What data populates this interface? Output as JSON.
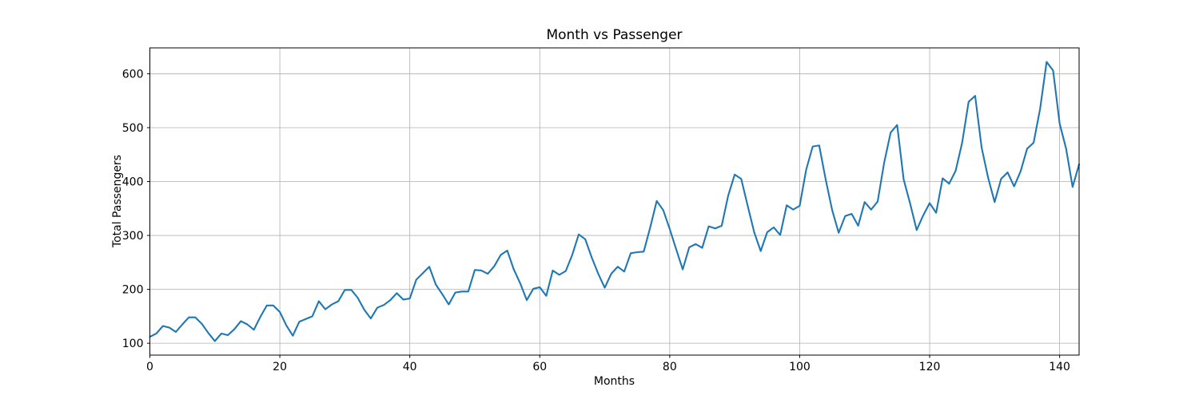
{
  "figure": {
    "title": "Month vs Passenger",
    "xlabel": "Months",
    "ylabel": "Total Passengers"
  },
  "chart_data": {
    "type": "line",
    "title": "Month vs Passenger",
    "xlabel": "Months",
    "ylabel": "Total Passengers",
    "x_description": "month index 0-143 (x value = array index)",
    "values": [
      112,
      118,
      132,
      129,
      121,
      135,
      148,
      148,
      136,
      119,
      104,
      118,
      115,
      126,
      141,
      135,
      125,
      149,
      170,
      170,
      158,
      133,
      114,
      140,
      145,
      150,
      178,
      163,
      172,
      178,
      199,
      199,
      184,
      162,
      146,
      166,
      171,
      180,
      193,
      181,
      183,
      218,
      230,
      242,
      209,
      191,
      172,
      194,
      196,
      196,
      236,
      235,
      229,
      243,
      264,
      272,
      237,
      211,
      180,
      201,
      204,
      188,
      235,
      227,
      234,
      264,
      302,
      293,
      259,
      229,
      203,
      229,
      242,
      233,
      267,
      269,
      270,
      315,
      364,
      347,
      312,
      274,
      237,
      278,
      284,
      277,
      317,
      313,
      318,
      374,
      413,
      405,
      355,
      306,
      271,
      306,
      315,
      301,
      356,
      348,
      355,
      422,
      465,
      467,
      404,
      347,
      305,
      336,
      340,
      318,
      362,
      348,
      363,
      435,
      491,
      505,
      404,
      359,
      310,
      337,
      360,
      342,
      406,
      396,
      420,
      472,
      548,
      559,
      463,
      407,
      362,
      405,
      417,
      391,
      419,
      461,
      472,
      535,
      622,
      606,
      508,
      461,
      390,
      432
    ],
    "x_ticks": [
      0,
      20,
      40,
      60,
      80,
      100,
      120,
      140
    ],
    "y_ticks": [
      100,
      200,
      300,
      400,
      500,
      600
    ],
    "xlim": [
      0,
      143
    ],
    "ylim": [
      78,
      648
    ],
    "grid": true,
    "legend": null,
    "line_color": "#1f77b4",
    "grid_color": "#b0b0b0",
    "spine_color": "#000000",
    "background": "#ffffff"
  }
}
